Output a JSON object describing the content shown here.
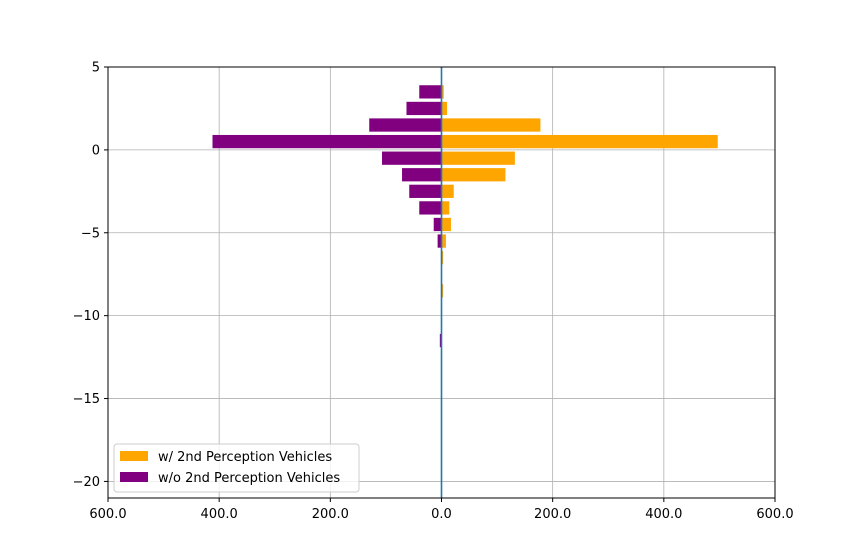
{
  "chart_data": {
    "type": "bar",
    "orientation": "horizontal",
    "title": "",
    "xlabel": "",
    "ylabel": "",
    "xlim": [
      -600,
      600
    ],
    "ylim": [
      -21,
      5
    ],
    "grid": true,
    "legend_position": "lower-left",
    "x_ticks": [
      {
        "value": -600,
        "label": "600.0"
      },
      {
        "value": -400,
        "label": "400.0"
      },
      {
        "value": -200,
        "label": "200.0"
      },
      {
        "value": 0,
        "label": "0.0"
      },
      {
        "value": 200,
        "label": "200.0"
      },
      {
        "value": 400,
        "label": "400.0"
      },
      {
        "value": 600,
        "label": "600.0"
      }
    ],
    "y_ticks": [
      {
        "value": 5,
        "label": "5"
      },
      {
        "value": 0,
        "label": "0"
      },
      {
        "value": -5,
        "label": "−5"
      },
      {
        "value": -10,
        "label": "−10"
      },
      {
        "value": -15,
        "label": "−15"
      },
      {
        "value": -20,
        "label": "−20"
      }
    ],
    "zero_line_color": "#1f77b4",
    "series": [
      {
        "name": "w/ 2nd Perception Vehicles",
        "color": "#ffa500",
        "direction": "right",
        "y": [
          3.5,
          2.5,
          1.5,
          0.5,
          -0.5,
          -1.5,
          -2.5,
          -3.5,
          -4.5,
          -5.5,
          -6.5,
          -8.5
        ],
        "values": [
          4,
          10,
          178,
          497,
          132,
          115,
          22,
          14,
          17,
          8,
          3,
          3
        ]
      },
      {
        "name": "w/o 2nd Perception Vehicles",
        "color": "#800080",
        "direction": "left",
        "y": [
          3.5,
          2.5,
          1.5,
          0.5,
          -0.5,
          -1.5,
          -2.5,
          -3.5,
          -4.5,
          -5.5,
          -11.5
        ],
        "values": [
          40,
          63,
          130,
          412,
          107,
          71,
          58,
          40,
          14,
          7,
          3
        ]
      }
    ]
  }
}
